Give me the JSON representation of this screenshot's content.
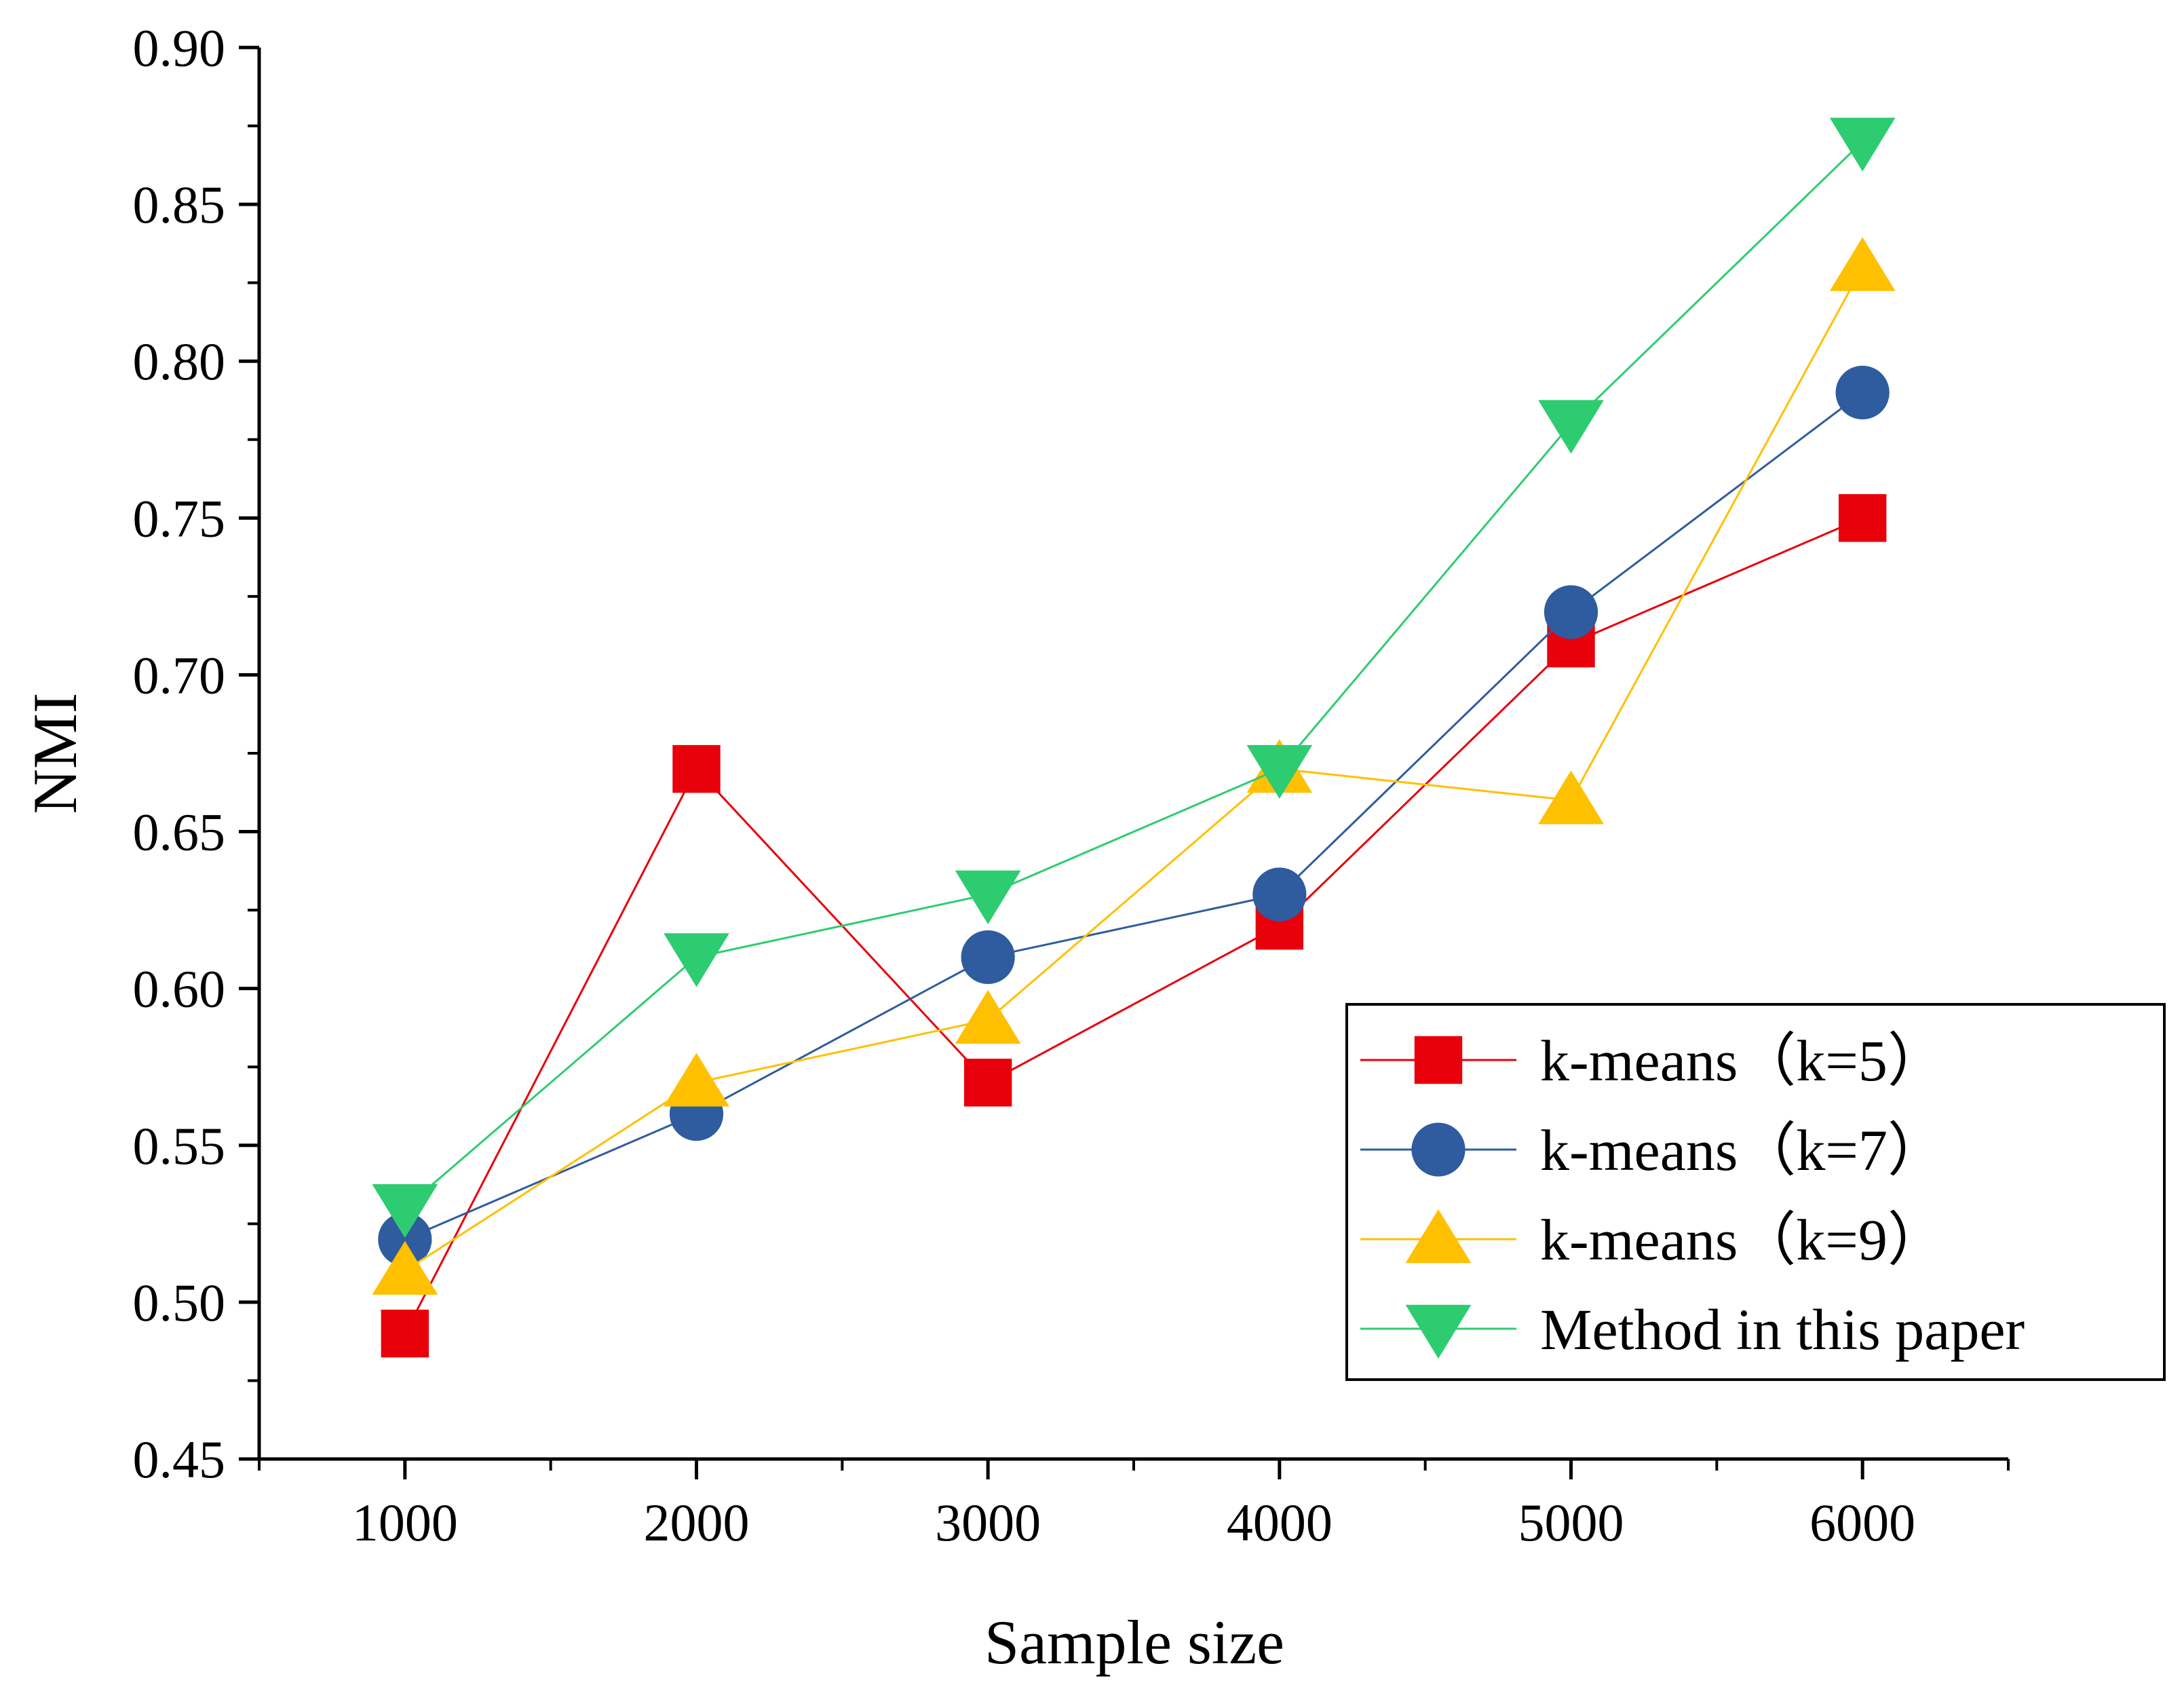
{
  "chart_data": {
    "type": "line",
    "title": "",
    "xlabel": "Sample size",
    "ylabel": "NMI",
    "x": [
      1000,
      2000,
      3000,
      4000,
      5000,
      6000
    ],
    "xlim": [
      500,
      6500
    ],
    "ylim": [
      0.45,
      0.9
    ],
    "x_ticks": [
      "1000",
      "2000",
      "3000",
      "4000",
      "5000",
      "6000"
    ],
    "y_ticks": [
      "0.45",
      "0.50",
      "0.55",
      "0.60",
      "0.65",
      "0.70",
      "0.75",
      "0.80",
      "0.85",
      "0.90"
    ],
    "grid": false,
    "legend_position": "bottom-right",
    "series": [
      {
        "name": "k-means（k=5）",
        "color": "#e8000b",
        "marker": "square",
        "values": [
          0.49,
          0.67,
          0.57,
          0.62,
          0.71,
          0.75
        ]
      },
      {
        "name": "k-means（k=7）",
        "color": "#2e5c9e",
        "marker": "circle",
        "values": [
          0.52,
          0.56,
          0.61,
          0.63,
          0.72,
          0.79
        ]
      },
      {
        "name": "k-means（k=9）",
        "color": "#ffc000",
        "marker": "triangle-up",
        "values": [
          0.51,
          0.57,
          0.59,
          0.67,
          0.66,
          0.83
        ]
      },
      {
        "name": "Method in this paper",
        "color": "#2ecc71",
        "marker": "triangle-down",
        "values": [
          0.53,
          0.61,
          0.63,
          0.67,
          0.78,
          0.87
        ]
      }
    ]
  }
}
